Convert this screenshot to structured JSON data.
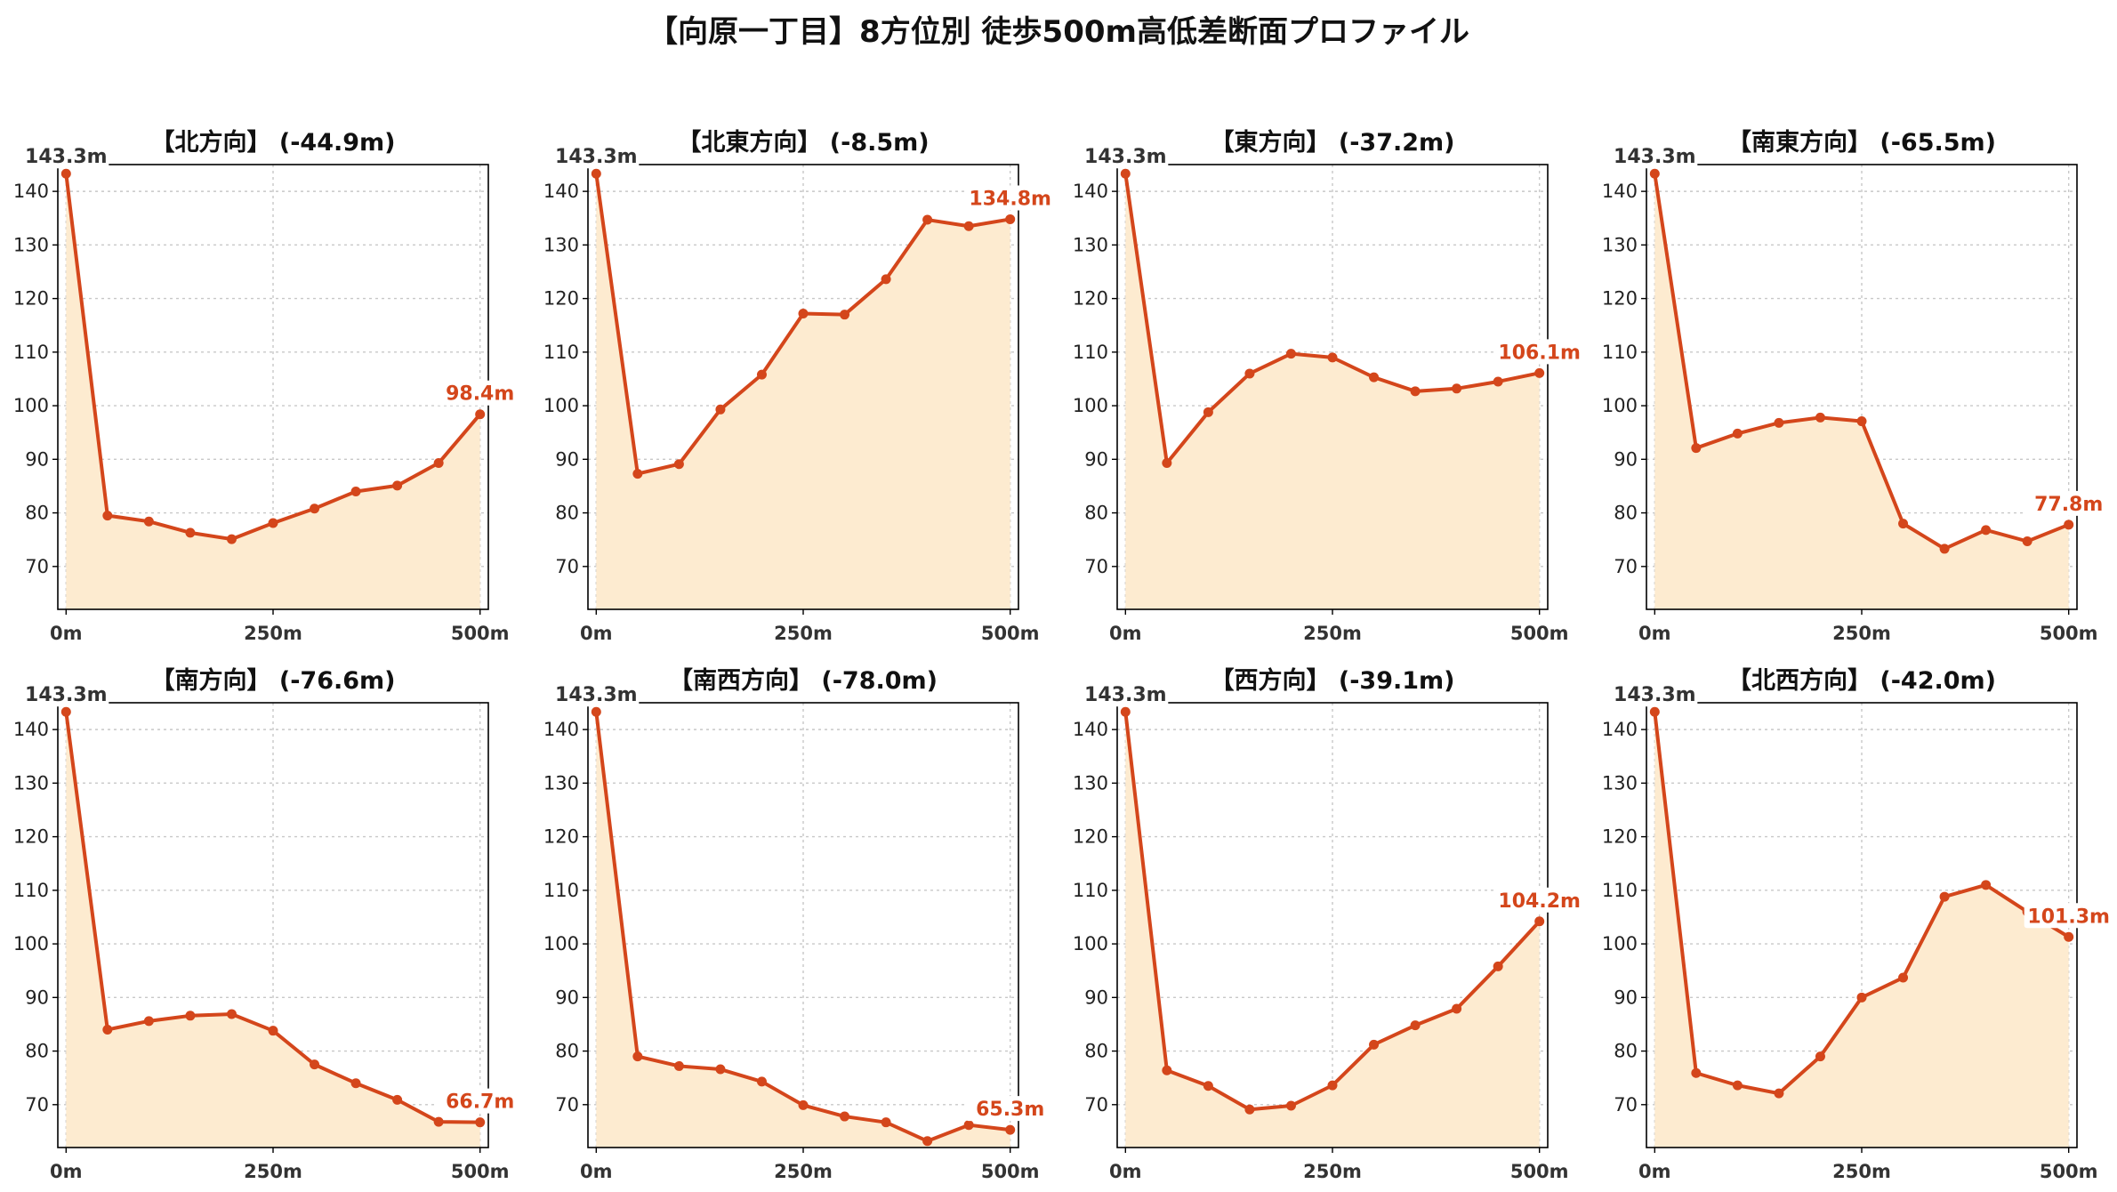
{
  "title": "【向原一丁目】8方位別 徒歩500m高低差断面プロファイル",
  "colors": {
    "line": "#d4461b",
    "fill": "#fdebd0",
    "grid": "#c8c8c8",
    "axis": "#000000",
    "start_label": "#333333"
  },
  "chart_data": {
    "type": "line",
    "x": [
      0,
      50,
      100,
      150,
      200,
      250,
      300,
      350,
      400,
      450,
      500
    ],
    "xticks": [
      0,
      250,
      500
    ],
    "xtick_labels": [
      "0m",
      "250m",
      "500m"
    ],
    "xlim": [
      -10,
      510
    ],
    "yticks": [
      70,
      80,
      90,
      100,
      110,
      120,
      130,
      140
    ],
    "ylim": [
      62,
      145
    ],
    "grid": true,
    "start_label": "143.3m",
    "panels": [
      {
        "title": "【北方向】 (-44.9m)",
        "end_label": "98.4m",
        "values": [
          143.3,
          79.5,
          78.4,
          76.3,
          75.1,
          78.1,
          80.8,
          84.0,
          85.1,
          89.3,
          98.4
        ]
      },
      {
        "title": "【北東方向】 (-8.5m)",
        "end_label": "134.8m",
        "values": [
          143.3,
          87.3,
          89.1,
          99.3,
          105.8,
          117.2,
          117.0,
          123.6,
          134.7,
          133.5,
          134.8
        ]
      },
      {
        "title": "【東方向】 (-37.2m)",
        "end_label": "106.1m",
        "values": [
          143.3,
          89.3,
          98.8,
          106.0,
          109.7,
          109.0,
          105.3,
          102.7,
          103.2,
          104.5,
          106.1
        ]
      },
      {
        "title": "【南東方向】 (-65.5m)",
        "end_label": "77.8m",
        "values": [
          143.3,
          92.1,
          94.8,
          96.8,
          97.8,
          97.1,
          78.0,
          73.3,
          76.8,
          74.7,
          77.8
        ]
      },
      {
        "title": "【南方向】 (-76.6m)",
        "end_label": "66.7m",
        "values": [
          143.3,
          84.0,
          85.6,
          86.6,
          86.9,
          83.8,
          77.5,
          74.0,
          70.9,
          66.8,
          66.7
        ]
      },
      {
        "title": "【南西方向】 (-78.0m)",
        "end_label": "65.3m",
        "values": [
          143.3,
          79.0,
          77.2,
          76.6,
          74.3,
          69.9,
          67.8,
          66.7,
          63.2,
          66.2,
          65.3
        ]
      },
      {
        "title": "【西方向】 (-39.1m)",
        "end_label": "104.2m",
        "values": [
          143.3,
          76.4,
          73.5,
          69.1,
          69.8,
          73.6,
          81.2,
          84.8,
          87.9,
          95.8,
          104.2
        ]
      },
      {
        "title": "【北西方向】 (-42.0m)",
        "end_label": "101.3m",
        "values": [
          143.3,
          75.9,
          73.6,
          72.1,
          79.0,
          90.0,
          93.7,
          108.8,
          111.0,
          106.0,
          101.3
        ]
      }
    ]
  }
}
